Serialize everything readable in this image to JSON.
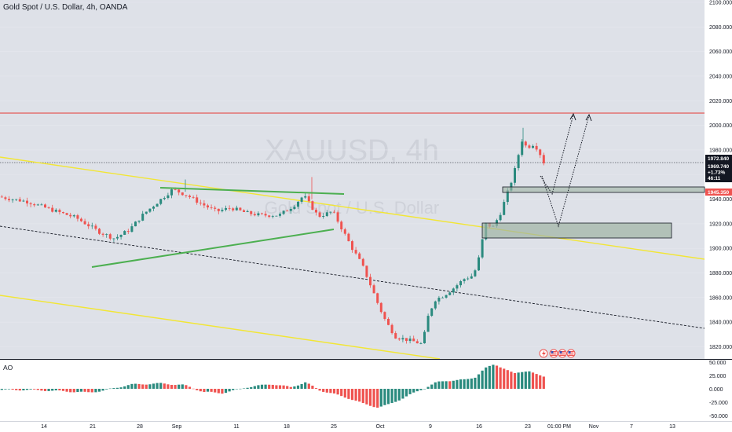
{
  "header": {
    "title": "Gold Spot / U.S. Dollar, 4h, OANDA"
  },
  "watermark": {
    "symbol": "XAUUSD, 4h",
    "description": "Gold Spot / U.S. Dollar"
  },
  "colors": {
    "up": "#2a8a7e",
    "down": "#ef5350",
    "yellow": "#f2e635",
    "green": "#4caf50",
    "red_line": "#e53935",
    "box_fill": "#9fb4a4",
    "bg": "#ffffff",
    "plot_bg": "#dee1e8"
  },
  "price_tags": {
    "last": "1972.840",
    "current": "1969.740",
    "change": "+1.73%",
    "countdown": "46:11",
    "level": "1945.350"
  },
  "icons": [
    "flash-icon",
    "us-flag-icon",
    "us-flag-icon",
    "us-flag-icon"
  ],
  "indicator": {
    "name": "AO",
    "ticks": [
      "50.000",
      "25.000",
      "0.000",
      "-25.000",
      "-50.000"
    ]
  },
  "chart_data": {
    "type": "candlestick",
    "symbol": "XAUUSD",
    "timeframe": "4h",
    "y_ticks": [
      "2100.000",
      "2080.000",
      "2060.000",
      "2040.000",
      "2020.000",
      "2000.000",
      "1980.000",
      "1960.000",
      "1940.000",
      "1920.000",
      "1900.000",
      "1880.000",
      "1860.000",
      "1840.000",
      "1820.000"
    ],
    "ylim": [
      1814,
      2100
    ],
    "x_ticks": [
      "14",
      "21",
      "28",
      "Sep",
      "11",
      "18",
      "25",
      "Oct",
      "9",
      "16",
      "23",
      "01:00 PM",
      "Nov",
      "7",
      "13"
    ],
    "price_path": [
      [
        0,
        1942
      ],
      [
        6,
        1938
      ],
      [
        12,
        1930
      ],
      [
        16,
        1925
      ],
      [
        21,
        1913
      ],
      [
        24,
        1908
      ],
      [
        27,
        1915
      ],
      [
        30,
        1928
      ],
      [
        33,
        1938
      ],
      [
        36,
        1948
      ],
      [
        39,
        1943
      ],
      [
        42,
        1936
      ],
      [
        45,
        1930
      ],
      [
        48,
        1933
      ],
      [
        51,
        1929
      ],
      [
        54,
        1927
      ],
      [
        58,
        1927
      ],
      [
        61,
        1935
      ],
      [
        63,
        1943
      ],
      [
        66,
        1926
      ],
      [
        69,
        1930
      ],
      [
        71,
        1915
      ],
      [
        73,
        1900
      ],
      [
        75,
        1887
      ],
      [
        77,
        1868
      ],
      [
        78.5,
        1853
      ],
      [
        80,
        1840
      ],
      [
        82,
        1828
      ],
      [
        84,
        1826
      ],
      [
        86,
        1824
      ],
      [
        87.5,
        1822
      ],
      [
        88.5,
        1843
      ],
      [
        90,
        1858
      ],
      [
        92,
        1862
      ],
      [
        94,
        1868
      ],
      [
        96,
        1875
      ],
      [
        98,
        1878
      ],
      [
        99,
        1890
      ],
      [
        100.5,
        1920
      ],
      [
        102,
        1917
      ],
      [
        103.5,
        1928
      ],
      [
        105,
        1945
      ],
      [
        106.3,
        1960
      ],
      [
        108,
        1988
      ],
      [
        109,
        1982
      ],
      [
        110.5,
        1985
      ],
      [
        111.5,
        1979
      ],
      [
        112.5,
        1970
      ]
    ],
    "horizontal_level": 2010,
    "demand_zones": [
      [
        1944,
        1949
      ],
      [
        1909,
        1921
      ]
    ],
    "ao_path": [
      [
        0,
        -2
      ],
      [
        6,
        -2
      ],
      [
        12,
        -4
      ],
      [
        18,
        -7
      ],
      [
        21,
        -4
      ],
      [
        27,
        8
      ],
      [
        33,
        10
      ],
      [
        38,
        7
      ],
      [
        42,
        -6
      ],
      [
        46,
        -8
      ],
      [
        51,
        3
      ],
      [
        56,
        9
      ],
      [
        60,
        3
      ],
      [
        63,
        12
      ],
      [
        66,
        -3
      ],
      [
        69,
        -10
      ],
      [
        72,
        -18
      ],
      [
        75,
        -28
      ],
      [
        78,
        -35
      ],
      [
        80,
        -30
      ],
      [
        83,
        -18
      ],
      [
        86,
        -5
      ],
      [
        88,
        3
      ],
      [
        90,
        12
      ],
      [
        92,
        15
      ],
      [
        94,
        16
      ],
      [
        96,
        17
      ],
      [
        98,
        22
      ],
      [
        100,
        38
      ],
      [
        102,
        46
      ],
      [
        104,
        38
      ],
      [
        106,
        28
      ],
      [
        108,
        33
      ],
      [
        109,
        34
      ],
      [
        111,
        25
      ],
      [
        112.5,
        22
      ]
    ]
  }
}
